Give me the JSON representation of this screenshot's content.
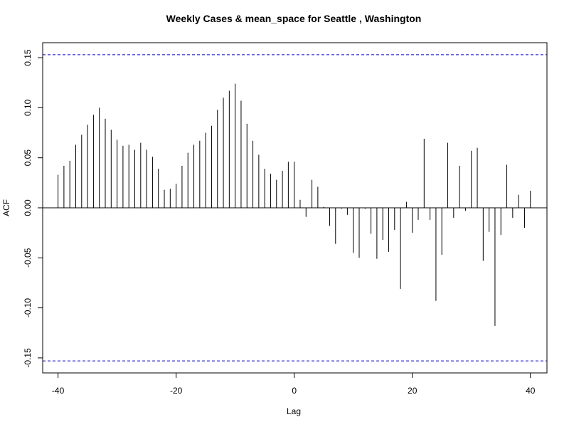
{
  "chart_data": {
    "type": "bar",
    "title": "Weekly Cases & mean_space for Seattle , Washington",
    "xlabel": "Lag",
    "ylabel": "ACF",
    "xlim": [
      -40,
      40
    ],
    "ylim": [
      -0.165,
      0.165
    ],
    "x_ticks": [
      -40,
      -20,
      0,
      20,
      40
    ],
    "x_tick_labels": [
      "-40",
      "-20",
      "0",
      "20",
      "40"
    ],
    "y_ticks": [
      -0.15,
      -0.1,
      -0.05,
      0.0,
      0.05,
      0.1,
      0.15
    ],
    "y_tick_labels": [
      "-0.15",
      "-0.10",
      "-0.05",
      "0.00",
      "0.05",
      "0.10",
      "0.15"
    ],
    "confidence_bounds": [
      0.153,
      -0.153
    ],
    "confidence_color": "#0000cc",
    "bar_color": "#000000",
    "zero_line": 0,
    "lags": [
      -40,
      -39,
      -38,
      -37,
      -36,
      -35,
      -34,
      -33,
      -32,
      -31,
      -30,
      -29,
      -28,
      -27,
      -26,
      -25,
      -24,
      -23,
      -22,
      -21,
      -20,
      -19,
      -18,
      -17,
      -16,
      -15,
      -14,
      -13,
      -12,
      -11,
      -10,
      -9,
      -8,
      -7,
      -6,
      -5,
      -4,
      -3,
      -2,
      -1,
      0,
      1,
      2,
      3,
      4,
      5,
      6,
      7,
      8,
      9,
      10,
      11,
      12,
      13,
      14,
      15,
      16,
      17,
      18,
      19,
      20,
      21,
      22,
      23,
      24,
      25,
      26,
      27,
      28,
      29,
      30,
      31,
      32,
      33,
      34,
      35,
      36,
      37,
      38,
      39,
      40
    ],
    "values": [
      0.033,
      0.042,
      0.047,
      0.063,
      0.073,
      0.083,
      0.093,
      0.1,
      0.089,
      0.078,
      0.068,
      0.062,
      0.063,
      0.058,
      0.065,
      0.058,
      0.051,
      0.039,
      0.018,
      0.019,
      0.024,
      0.042,
      0.055,
      0.063,
      0.067,
      0.075,
      0.082,
      0.098,
      0.11,
      0.117,
      0.124,
      0.107,
      0.084,
      0.067,
      0.053,
      0.039,
      0.034,
      0.028,
      0.037,
      0.046,
      0.046,
      0.008,
      -0.009,
      0.028,
      0.021,
      0.001,
      -0.018,
      -0.036,
      -0.001,
      -0.007,
      -0.045,
      -0.05,
      -0.001,
      -0.026,
      -0.051,
      -0.032,
      -0.044,
      -0.022,
      -0.081,
      0.006,
      -0.025,
      -0.012,
      0.069,
      -0.012,
      -0.093,
      -0.047,
      0.065,
      -0.01,
      0.042,
      -0.003,
      0.057,
      0.06,
      -0.053,
      -0.024,
      -0.118,
      -0.027,
      0.043,
      -0.01,
      0.013,
      -0.02,
      0.017
    ]
  }
}
